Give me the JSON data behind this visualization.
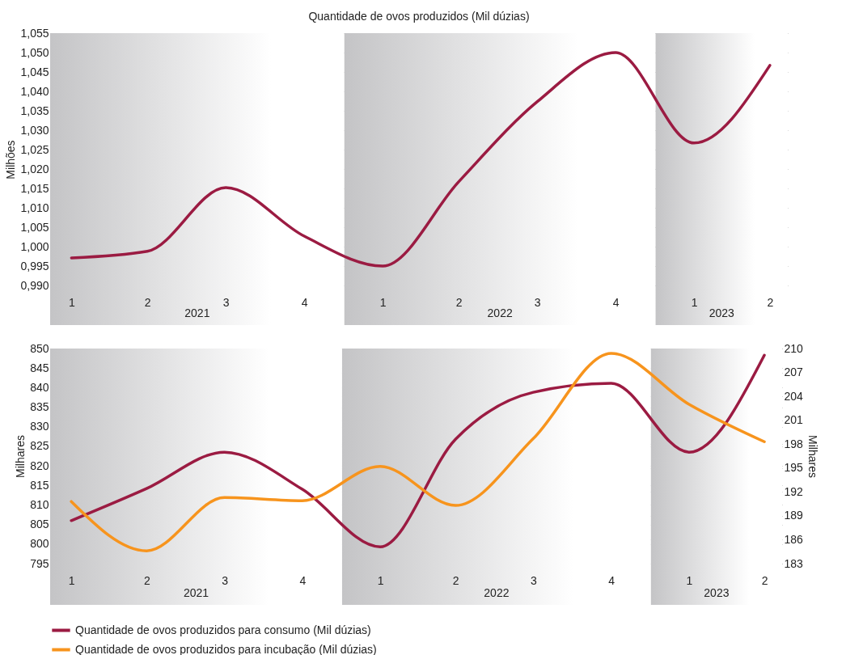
{
  "chart_data": [
    {
      "type": "line",
      "title": "Quantidade de ovos produzidos (Mil dúzias)",
      "ylabel": "Milhões",
      "x": [
        "2021-02-15",
        "2021-05-15",
        "2021-08-15",
        "2021-11-15",
        "2022-02-15",
        "2022-05-15",
        "2022-08-15",
        "2022-11-15",
        "2023-02-15",
        "2023-05-15"
      ],
      "xlim": [
        "2021-01-21",
        "2023-06-05"
      ],
      "xticks": [
        {
          "value": "2021-02-15",
          "label": "1"
        },
        {
          "value": "2021-05-15",
          "label": "2"
        },
        {
          "value": "2021-08-15",
          "label": "3"
        },
        {
          "value": "2021-11-15",
          "label": "4"
        },
        {
          "value": "2022-02-15",
          "label": "1"
        },
        {
          "value": "2022-05-15",
          "label": "2"
        },
        {
          "value": "2022-08-15",
          "label": "3"
        },
        {
          "value": "2022-11-15",
          "label": "4"
        },
        {
          "value": "2023-02-15",
          "label": "1"
        },
        {
          "value": "2023-05-15",
          "label": "2"
        }
      ],
      "series": [
        {
          "color": "#9b1b42",
          "values": [
            0.9971,
            0.9988,
            1.0152,
            1.0027,
            0.995,
            1.0167,
            1.0373,
            1.05,
            1.0267,
            1.0467
          ]
        }
      ],
      "ylim": [
        0.99,
        1.055
      ],
      "yticks": [
        {
          "value": 0.99,
          "label": "0,990"
        },
        {
          "value": 0.995,
          "label": "0,995"
        },
        {
          "value": 1.0,
          "label": "1,000"
        },
        {
          "value": 1.005,
          "label": "1,005"
        },
        {
          "value": 1.01,
          "label": "1,010"
        },
        {
          "value": 1.015,
          "label": "1,015"
        },
        {
          "value": 1.02,
          "label": "1,020"
        },
        {
          "value": 1.025,
          "label": "1,025"
        },
        {
          "value": 1.03,
          "label": "1,030"
        },
        {
          "value": 1.035,
          "label": "1,035"
        },
        {
          "value": 1.04,
          "label": "1,040"
        },
        {
          "value": 1.045,
          "label": "1,045"
        },
        {
          "value": 1.05,
          "label": "1,050"
        },
        {
          "value": 1.055,
          "label": "1,055"
        }
      ],
      "bands": [
        {
          "axis": "x",
          "from": "2021-01-21",
          "to": "2022-01-01",
          "label": "2021",
          "color": "#c4c4c6"
        },
        {
          "axis": "x",
          "from": "2022-01-01",
          "to": "2023-01-01",
          "label": "2022",
          "color": "#c4c4c6"
        },
        {
          "axis": "x",
          "from": "2023-01-01",
          "to": "2023-06-05",
          "label": "2023",
          "color": "#c4c4c6"
        }
      ],
      "grid": "y"
    },
    {
      "type": "line",
      "ylabel": "Milhares",
      "y2label": "Milhares",
      "x": [
        "2021-02-15",
        "2021-05-15",
        "2021-08-15",
        "2021-11-15",
        "2022-02-15",
        "2022-05-15",
        "2022-08-15",
        "2022-11-15",
        "2023-02-15",
        "2023-05-15"
      ],
      "xlim": [
        "2021-01-21",
        "2023-06-05"
      ],
      "xticks": [
        {
          "value": "2021-02-15",
          "label": "1"
        },
        {
          "value": "2021-05-15",
          "label": "2"
        },
        {
          "value": "2021-08-15",
          "label": "3"
        },
        {
          "value": "2021-11-15",
          "label": "4"
        },
        {
          "value": "2022-02-15",
          "label": "1"
        },
        {
          "value": "2022-05-15",
          "label": "2"
        },
        {
          "value": "2022-08-15",
          "label": "3"
        },
        {
          "value": "2022-11-15",
          "label": "4"
        },
        {
          "value": "2023-02-15",
          "label": "1"
        },
        {
          "value": "2023-05-15",
          "label": "2"
        }
      ],
      "series": [
        {
          "name": "Quantidade de ovos produzidos para consumo (Mil dúzias)",
          "color": "#9b1b42",
          "values": [
            806.0,
            814.2,
            823.5,
            814.0,
            799.3,
            826.8,
            838.8,
            841.1,
            823.5,
            848.3
          ]
        },
        {
          "name": "Quantidade de ovos produzidos para incubação (Mil dúzias)",
          "color": "#f7941d",
          "axis": "y2",
          "values": [
            190.8,
            184.6,
            191.3,
            190.9,
            195.2,
            190.3,
            198.7,
            209.4,
            203.0,
            198.3
          ]
        }
      ],
      "ylim": [
        795,
        850
      ],
      "yticks": [
        795,
        800,
        805,
        810,
        815,
        820,
        825,
        830,
        835,
        840,
        845,
        850
      ],
      "y2lim": [
        183,
        210
      ],
      "y2ticks": [
        183,
        186,
        189,
        192,
        195,
        198,
        201,
        204,
        207,
        210
      ],
      "bands": [
        {
          "axis": "x",
          "from": "2021-01-21",
          "to": "2022-01-01",
          "label": "2021",
          "color": "#c4c4c6"
        },
        {
          "axis": "x",
          "from": "2022-01-01",
          "to": "2023-01-01",
          "label": "2022",
          "color": "#c4c4c6"
        },
        {
          "axis": "x",
          "from": "2023-01-01",
          "to": "2023-06-05",
          "label": "2023",
          "color": "#c4c4c6"
        }
      ],
      "grid": "y",
      "legend": "bottom"
    }
  ]
}
